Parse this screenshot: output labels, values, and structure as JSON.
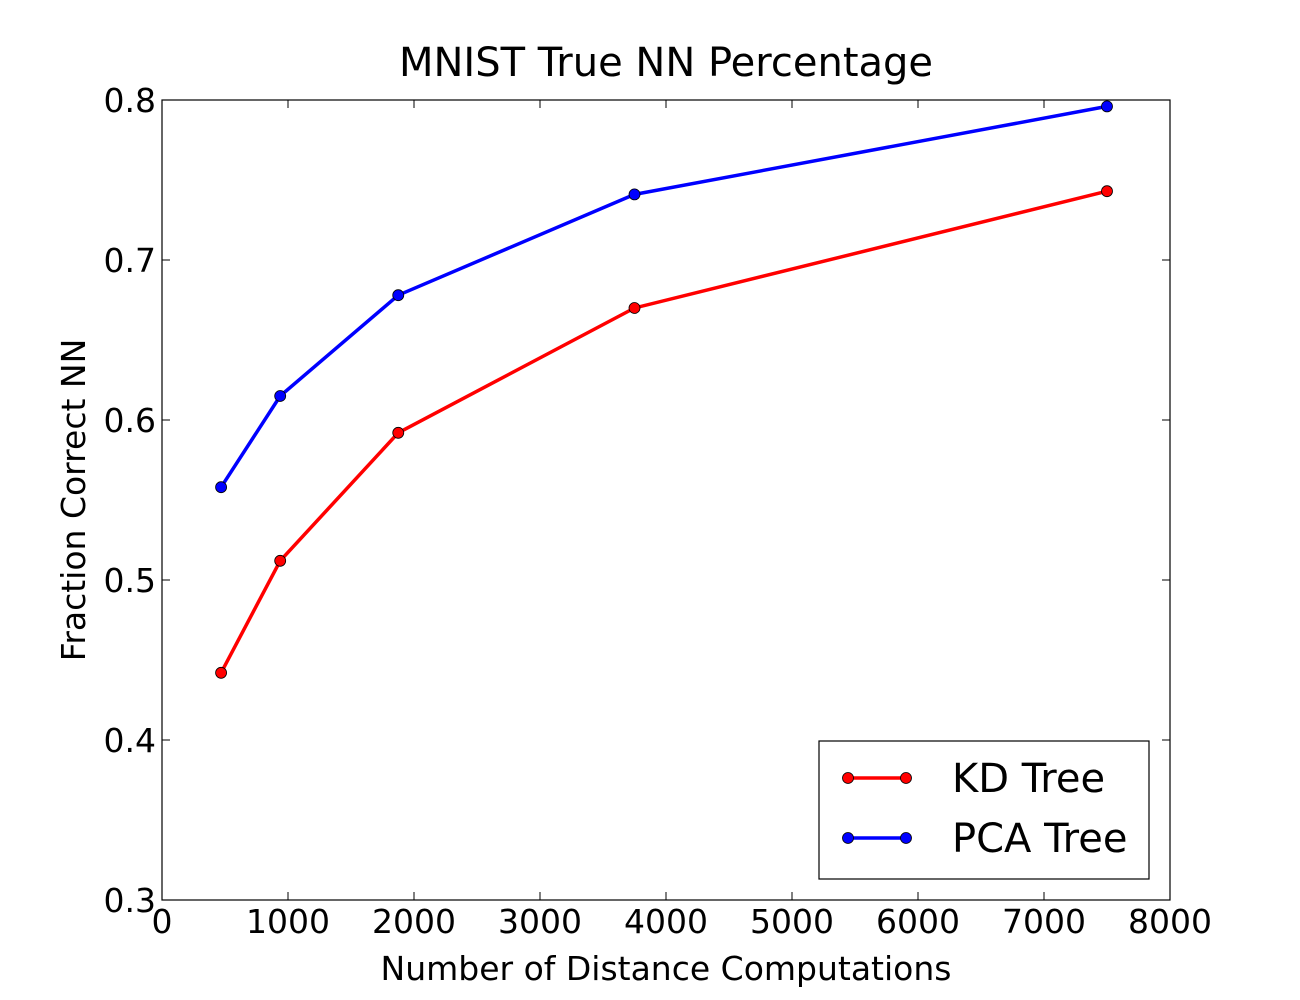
{
  "chart_data": {
    "type": "line",
    "title": "MNIST True NN Percentage",
    "xlabel": "Number of Distance Computations",
    "ylabel": "Fraction Correct NN",
    "xlim": [
      0,
      8000
    ],
    "ylim": [
      0.3,
      0.8
    ],
    "xticks": [
      0,
      1000,
      2000,
      3000,
      4000,
      5000,
      6000,
      7000,
      8000
    ],
    "xtick_labels": [
      "0",
      "1000",
      "2000",
      "3000",
      "4000",
      "5000",
      "6000",
      "7000",
      "8000"
    ],
    "yticks": [
      0.3,
      0.4,
      0.5,
      0.6,
      0.7,
      0.8
    ],
    "ytick_labels": [
      "0.3",
      "0.4",
      "0.5",
      "0.6",
      "0.7",
      "0.8"
    ],
    "grid": false,
    "legend_position": "bottom-right",
    "x": [
      469,
      938,
      1875,
      3750,
      7500
    ],
    "series": [
      {
        "name": "KD Tree",
        "color": "#ff0000",
        "marker_color": "#ff0000",
        "values": [
          0.442,
          0.512,
          0.592,
          0.67,
          0.743
        ]
      },
      {
        "name": "PCA Tree",
        "color": "#0000ff",
        "marker_color": "#0000ff",
        "values": [
          0.558,
          0.615,
          0.678,
          0.741,
          0.796
        ]
      }
    ]
  }
}
